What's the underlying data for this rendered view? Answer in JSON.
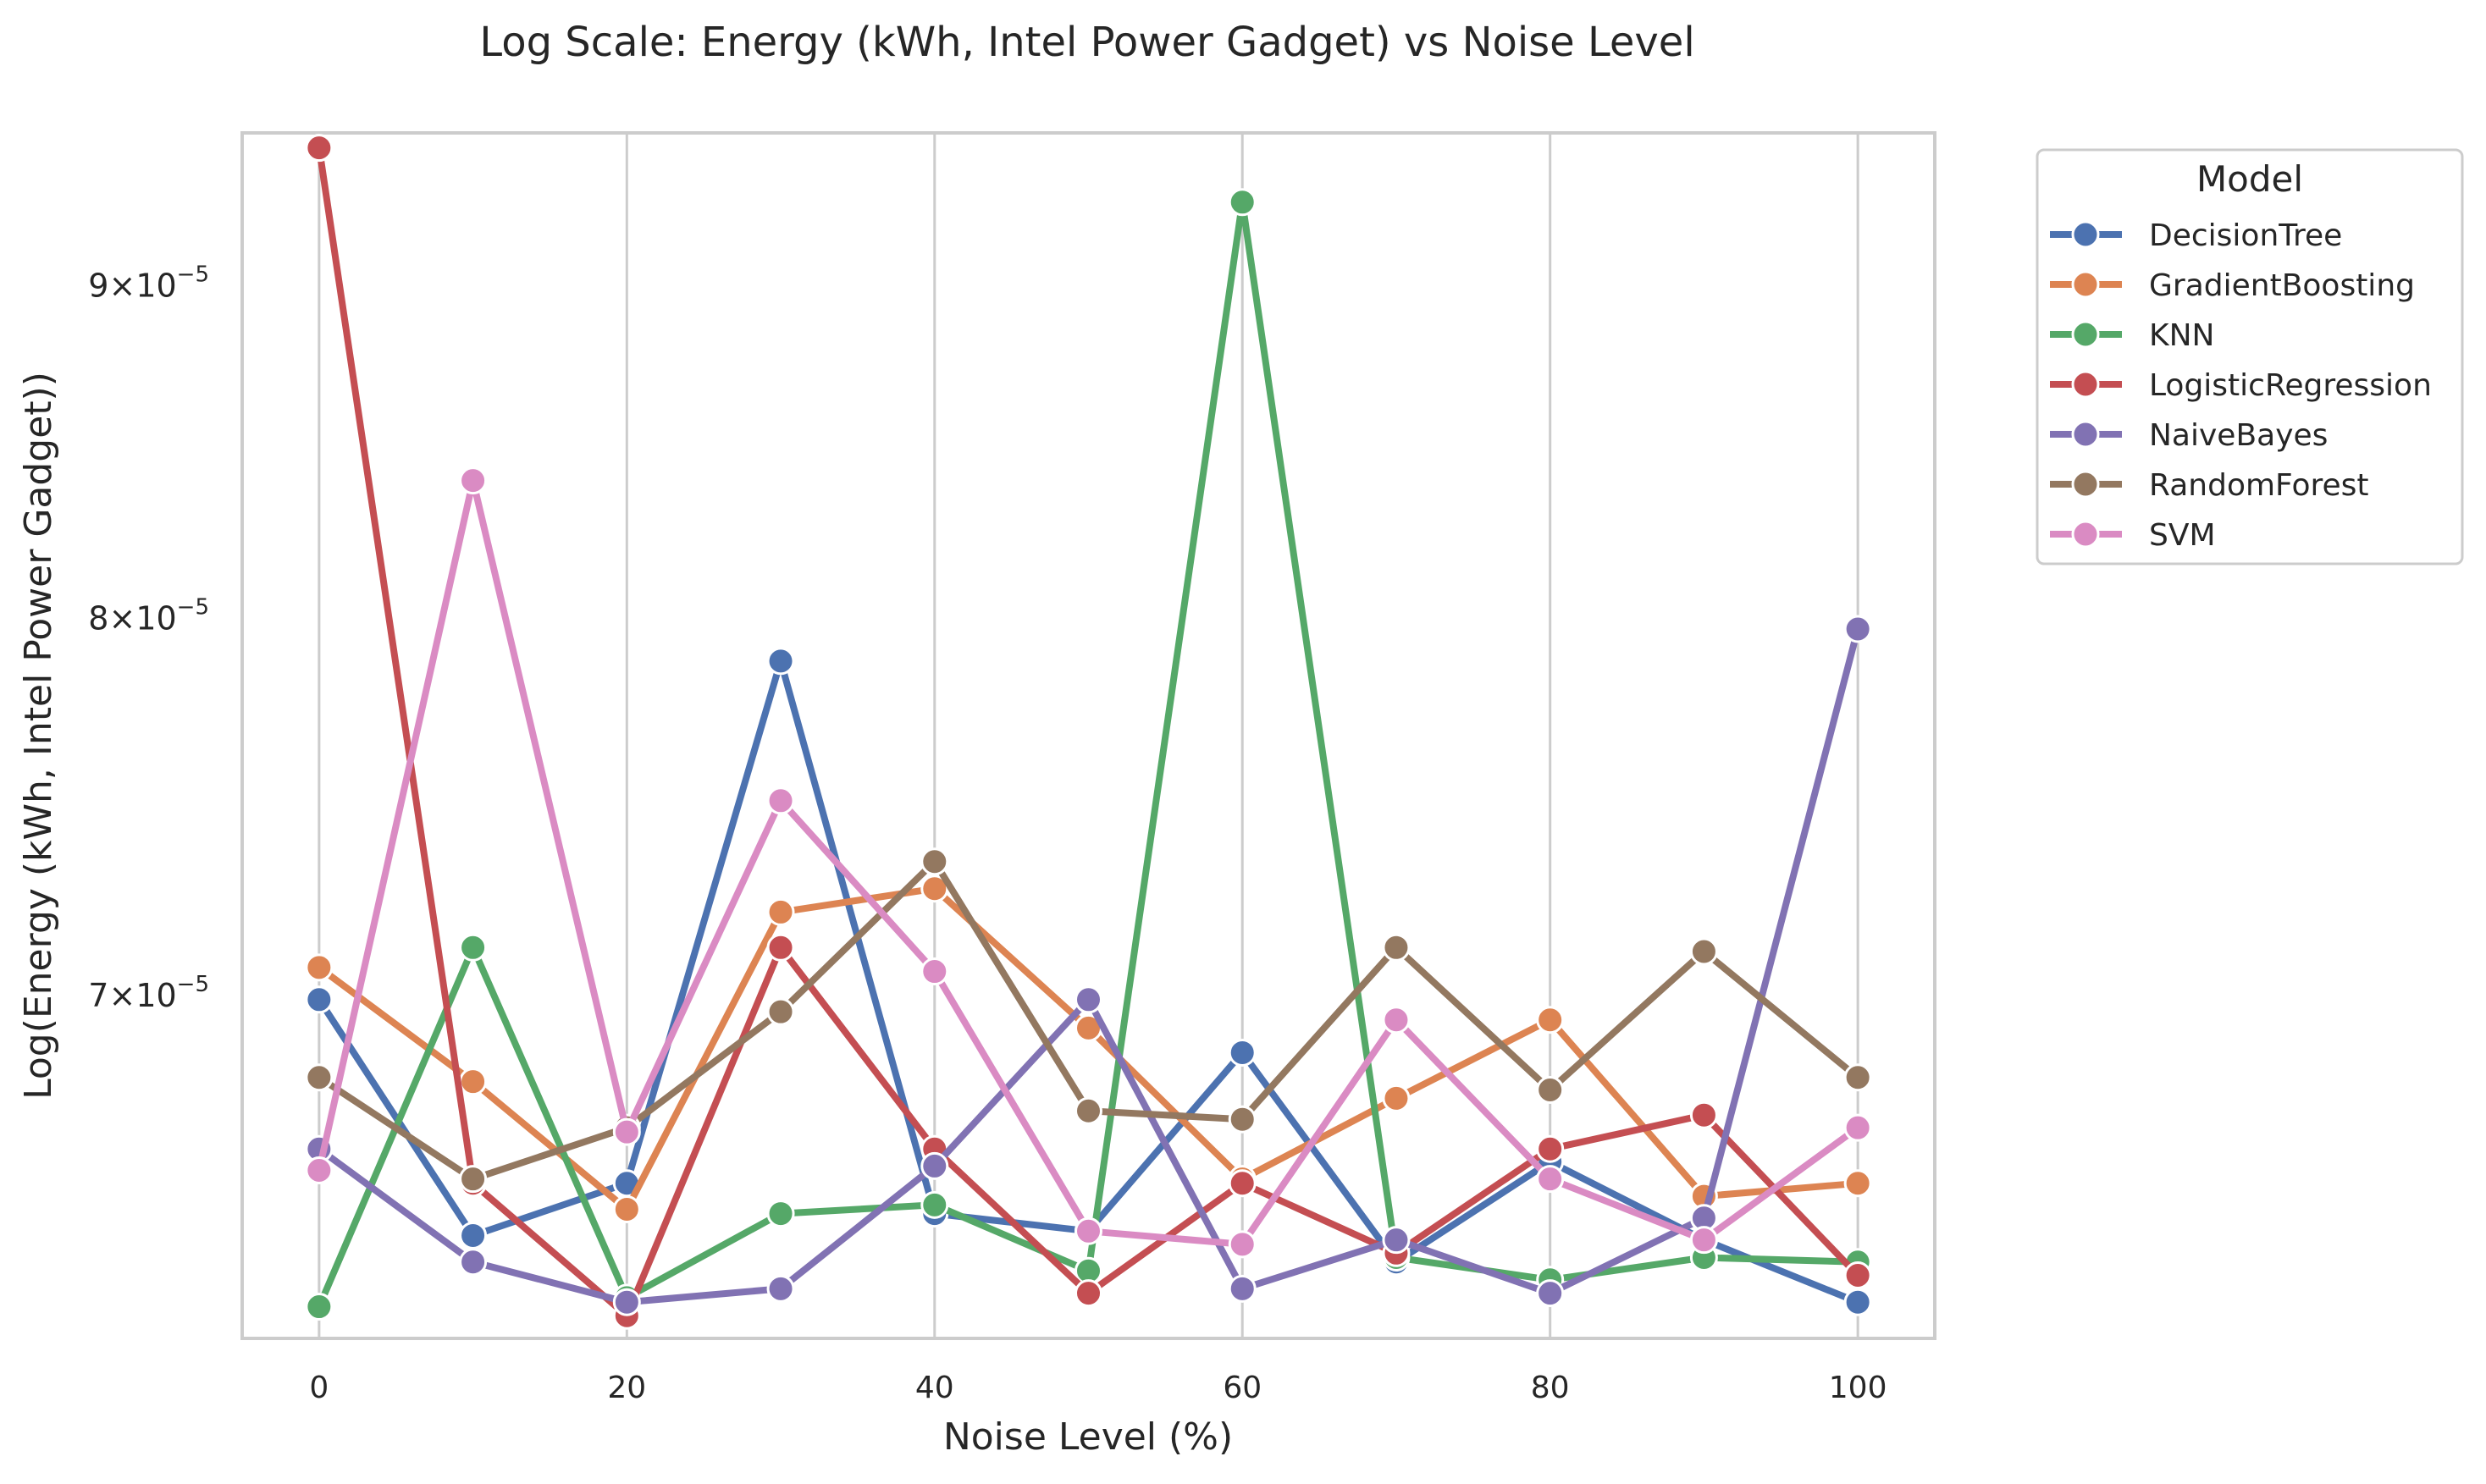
{
  "chart_data": {
    "type": "line",
    "title": "Log Scale: Energy (kWh, Intel Power Gadget) vs Noise Level",
    "xlabel": "Noise Level (%)",
    "ylabel": "Log(Energy (kWh, Intel Power Gadget))",
    "yscale": "log",
    "grid": "vertical-only",
    "legend_position": "outside-right",
    "xlim": [
      -5,
      105
    ],
    "ylim": [
      6.2e-05,
      9.5e-05
    ],
    "xticks": [
      {
        "value": 0,
        "label": "0"
      },
      {
        "value": 20,
        "label": "20"
      },
      {
        "value": 40,
        "label": "40"
      },
      {
        "value": 60,
        "label": "60"
      },
      {
        "value": 80,
        "label": "80"
      },
      {
        "value": 100,
        "label": "100"
      }
    ],
    "yticks": [
      {
        "value": 7e-05,
        "mantissa": "7",
        "base": "10",
        "exponent": "−5"
      },
      {
        "value": 8e-05,
        "mantissa": "8",
        "base": "10",
        "exponent": "−5"
      },
      {
        "value": 9e-05,
        "mantissa": "9",
        "base": "10",
        "exponent": "−5"
      }
    ],
    "legend_title": "Model",
    "x": [
      0,
      10,
      20,
      30,
      40,
      50,
      60,
      70,
      80,
      90,
      100
    ],
    "series": [
      {
        "name": "DecisionTree",
        "color": "#4c72b0",
        "values": [
          6.99e-05,
          6.43e-05,
          6.55e-05,
          7.88e-05,
          6.48e-05,
          6.44e-05,
          6.86e-05,
          6.37e-05,
          6.6e-05,
          6.42e-05,
          6.28e-05
        ]
      },
      {
        "name": "GradientBoosting",
        "color": "#dd8452",
        "values": [
          7.07e-05,
          6.79e-05,
          6.49e-05,
          7.21e-05,
          7.27e-05,
          6.92e-05,
          6.56e-05,
          6.75e-05,
          6.94e-05,
          6.52e-05,
          6.55e-05
        ]
      },
      {
        "name": "KNN",
        "color": "#55a868",
        "values": [
          6.27e-05,
          7.12e-05,
          6.29e-05,
          6.48e-05,
          6.5e-05,
          6.35e-05,
          9.27e-05,
          6.38e-05,
          6.33e-05,
          6.38e-05,
          6.37e-05
        ]
      },
      {
        "name": "LogisticRegression",
        "color": "#c44e52",
        "values": [
          9.45e-05,
          6.55e-05,
          6.25e-05,
          7.12e-05,
          6.63e-05,
          6.3e-05,
          6.55e-05,
          6.39e-05,
          6.63e-05,
          6.71e-05,
          6.34e-05
        ]
      },
      {
        "name": "NaiveBayes",
        "color": "#8172b3",
        "values": [
          6.63e-05,
          6.37e-05,
          6.28e-05,
          6.31e-05,
          6.59e-05,
          6.99e-05,
          6.31e-05,
          6.42e-05,
          6.3e-05,
          6.47e-05,
          7.97e-05
        ]
      },
      {
        "name": "RandomForest",
        "color": "#937860",
        "values": [
          6.8e-05,
          6.56e-05,
          6.68e-05,
          6.96e-05,
          7.34e-05,
          6.72e-05,
          6.7e-05,
          7.12e-05,
          6.77e-05,
          7.11e-05,
          6.8e-05
        ]
      },
      {
        "name": "SVM",
        "color": "#da8bc3",
        "values": [
          6.58e-05,
          8.4e-05,
          6.67e-05,
          7.5e-05,
          7.06e-05,
          6.44e-05,
          6.41e-05,
          6.94e-05,
          6.56e-05,
          6.42e-05,
          6.68e-05
        ]
      }
    ]
  }
}
